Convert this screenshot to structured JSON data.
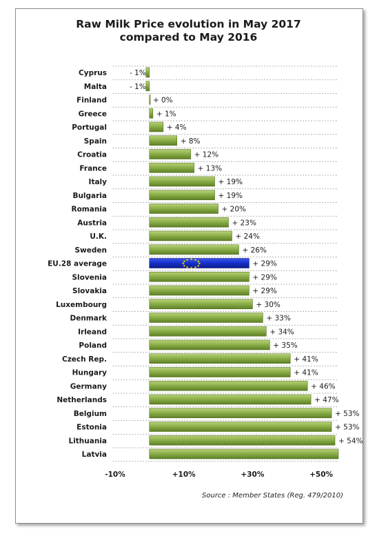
{
  "chart_data": {
    "type": "bar",
    "orientation": "horizontal",
    "title_line1": "Raw Milk Price evolution in May 2017",
    "title_line2": "compared to May 2016",
    "source": "Source : Member States (Reg. 479/2010)",
    "xlim": [
      -10,
      55
    ],
    "xticks": [
      "-10%",
      "+10%",
      "+30%",
      "+50%"
    ],
    "xtick_values": [
      -10,
      10,
      30,
      50
    ],
    "highlight": "EU.28 average",
    "colors": {
      "bar": "#8cb04a",
      "bar_dark": "#5e7f26",
      "highlight": "#1530c8",
      "grid": "#9a9a9a"
    },
    "categories": [
      "Cyprus",
      "Malta",
      "Finland",
      "Greece",
      "Portugal",
      "Spain",
      "Croatia",
      "France",
      "Italy",
      "Bulgaria",
      "Romania",
      "Austria",
      "U.K.",
      "Sweden",
      "EU.28 average",
      "Slovenia",
      "Slovakia",
      "Luxembourg",
      "Denmark",
      "Irleand",
      "Poland",
      "Czech Rep.",
      "Hungary",
      "Germany",
      "Netherlands",
      "Belgium",
      "Estonia",
      "Lithuania",
      "Latvia"
    ],
    "values": [
      -1,
      -1,
      0,
      1,
      4,
      8,
      12,
      13,
      19,
      19,
      20,
      23,
      24,
      26,
      29,
      29,
      29,
      30,
      33,
      34,
      35,
      41,
      41,
      46,
      47,
      53,
      53,
      54,
      55
    ],
    "labels": [
      "- 1%",
      "- 1%",
      "+ 0%",
      "+ 1%",
      "+ 4%",
      "+ 8%",
      "+ 12%",
      "+ 13%",
      "+ 19%",
      "+ 19%",
      "+ 20%",
      "+ 23%",
      "+ 24%",
      "+ 26%",
      "+ 29%",
      "+ 29%",
      "+ 29%",
      "+ 30%",
      "+ 33%",
      "+ 34%",
      "+ 35%",
      "+ 41%",
      "+ 41%",
      "+ 46%",
      "+ 47%",
      "+ 53%",
      "+ 53%",
      "+ 54%",
      ""
    ]
  }
}
